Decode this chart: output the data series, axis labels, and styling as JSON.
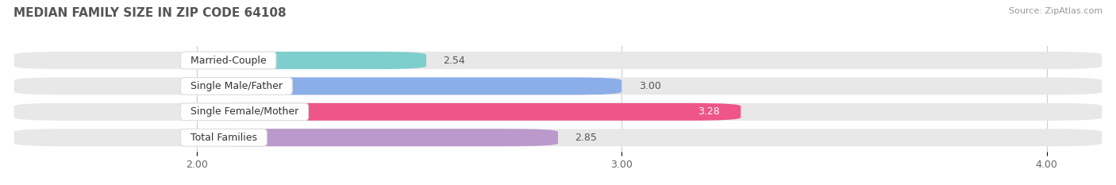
{
  "title": "MEDIAN FAMILY SIZE IN ZIP CODE 64108",
  "source": "Source: ZipAtlas.com",
  "categories": [
    "Married-Couple",
    "Single Male/Father",
    "Single Female/Mother",
    "Total Families"
  ],
  "values": [
    2.54,
    3.0,
    3.28,
    2.85
  ],
  "bar_colors": [
    "#7ecece",
    "#8caee8",
    "#ee5588",
    "#bb99cc"
  ],
  "xlim_data": [
    2.0,
    4.0
  ],
  "xlim_plot": [
    1.55,
    4.15
  ],
  "xticks": [
    2.0,
    3.0,
    4.0
  ],
  "xtick_labels": [
    "2.00",
    "3.00",
    "4.00"
  ],
  "background_color": "#ffffff",
  "bar_background_color": "#e8e8e8",
  "title_fontsize": 11,
  "source_fontsize": 8,
  "label_fontsize": 9,
  "value_fontsize": 9,
  "bar_height": 0.68,
  "bar_gap": 0.15
}
